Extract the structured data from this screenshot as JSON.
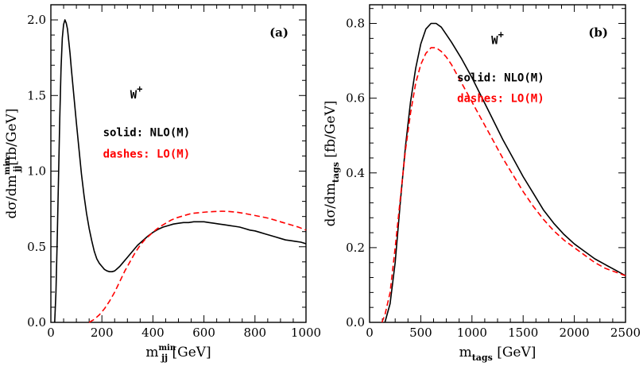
{
  "chart_data": [
    {
      "type": "line",
      "panel_tag": "(a)",
      "xlim": [
        0,
        1000
      ],
      "ylim": [
        0,
        2.1
      ],
      "xticks": [
        0,
        200,
        400,
        600,
        800,
        1000
      ],
      "yticks": [
        0.0,
        0.5,
        1.0,
        1.5,
        2.0
      ],
      "xtick_labels": [
        "0",
        "200",
        "400",
        "600",
        "800",
        "1000"
      ],
      "ytick_labels": [
        "0.0",
        "0.5",
        "1.0",
        "1.5",
        "2.0"
      ],
      "xlabel": {
        "main": "m",
        "sub": "jj",
        "sup": "min",
        "unit": "[GeV]"
      },
      "ylabel": {
        "main": "dσ/dm",
        "sub": "jj",
        "sup": "min",
        "unit": "[fb/GeV]"
      },
      "annotations": {
        "process": "W",
        "process_sup": "+",
        "solid": "solid: NLO(M)",
        "dashes": "dashes: LO(M)"
      },
      "series": [
        {
          "name": "NLO(M)",
          "style": "solid",
          "color": "#000000",
          "x": [
            15,
            20,
            25,
            30,
            35,
            40,
            45,
            50,
            55,
            60,
            65,
            70,
            75,
            80,
            90,
            100,
            110,
            120,
            130,
            140,
            150,
            160,
            170,
            180,
            190,
            200,
            210,
            220,
            230,
            240,
            250,
            260,
            270,
            280,
            300,
            320,
            340,
            360,
            380,
            400,
            420,
            440,
            460,
            480,
            500,
            520,
            540,
            560,
            580,
            600,
            620,
            640,
            660,
            680,
            700,
            720,
            740,
            760,
            780,
            800,
            820,
            840,
            860,
            880,
            900,
            920,
            940,
            960,
            980,
            1000
          ],
          "y": [
            0.0,
            0.2,
            0.55,
            0.95,
            1.35,
            1.68,
            1.88,
            1.97,
            2.0,
            1.98,
            1.94,
            1.86,
            1.78,
            1.68,
            1.5,
            1.32,
            1.15,
            0.98,
            0.84,
            0.72,
            0.62,
            0.54,
            0.47,
            0.42,
            0.39,
            0.37,
            0.35,
            0.34,
            0.335,
            0.335,
            0.34,
            0.355,
            0.37,
            0.39,
            0.43,
            0.47,
            0.51,
            0.54,
            0.57,
            0.595,
            0.615,
            0.63,
            0.64,
            0.65,
            0.655,
            0.66,
            0.66,
            0.665,
            0.665,
            0.665,
            0.66,
            0.655,
            0.65,
            0.645,
            0.64,
            0.635,
            0.63,
            0.62,
            0.61,
            0.605,
            0.595,
            0.585,
            0.575,
            0.565,
            0.555,
            0.545,
            0.54,
            0.535,
            0.53,
            0.52
          ]
        },
        {
          "name": "LO(M)",
          "style": "dashed",
          "color": "#ff0000",
          "x": [
            150,
            170,
            190,
            210,
            230,
            250,
            270,
            290,
            310,
            330,
            350,
            370,
            390,
            410,
            430,
            450,
            470,
            490,
            510,
            530,
            550,
            580,
            610,
            640,
            670,
            700,
            730,
            760,
            790,
            820,
            850,
            880,
            910,
            940,
            970,
            1000
          ],
          "y": [
            0.0,
            0.02,
            0.05,
            0.09,
            0.14,
            0.2,
            0.27,
            0.34,
            0.4,
            0.46,
            0.51,
            0.55,
            0.58,
            0.61,
            0.635,
            0.655,
            0.675,
            0.69,
            0.7,
            0.71,
            0.72,
            0.725,
            0.73,
            0.733,
            0.735,
            0.733,
            0.728,
            0.72,
            0.71,
            0.7,
            0.69,
            0.675,
            0.66,
            0.645,
            0.63,
            0.61
          ]
        }
      ]
    },
    {
      "type": "line",
      "panel_tag": "(b)",
      "xlim": [
        0,
        2500
      ],
      "ylim": [
        0,
        0.85
      ],
      "xticks": [
        0,
        500,
        1000,
        1500,
        2000,
        2500
      ],
      "yticks": [
        0.0,
        0.2,
        0.4,
        0.6,
        0.8
      ],
      "xtick_labels": [
        "0",
        "500",
        "1000",
        "1500",
        "2000",
        "2500"
      ],
      "ytick_labels": [
        "0.0",
        "0.2",
        "0.4",
        "0.6",
        "0.8"
      ],
      "xlabel": {
        "main": "m",
        "sub": "tags",
        "sup": "",
        "unit": "[GeV]"
      },
      "ylabel": {
        "main": "dσ/dm",
        "sub": "tags",
        "sup": "",
        "unit": "[fb/GeV]"
      },
      "annotations": {
        "process": "W",
        "process_sup": "+",
        "solid": "solid: NLO(M)",
        "dashes": "dashes: LO(M)"
      },
      "series": [
        {
          "name": "NLO(M)",
          "style": "solid",
          "color": "#000000",
          "x": [
            150,
            200,
            250,
            300,
            350,
            400,
            450,
            500,
            550,
            600,
            650,
            700,
            750,
            800,
            900,
            1000,
            1100,
            1200,
            1300,
            1400,
            1500,
            1600,
            1700,
            1800,
            1900,
            2000,
            2100,
            2200,
            2300,
            2400,
            2500
          ],
          "y": [
            0.0,
            0.05,
            0.16,
            0.32,
            0.47,
            0.59,
            0.68,
            0.745,
            0.785,
            0.8,
            0.8,
            0.79,
            0.77,
            0.75,
            0.705,
            0.655,
            0.6,
            0.545,
            0.49,
            0.44,
            0.39,
            0.345,
            0.3,
            0.265,
            0.235,
            0.21,
            0.19,
            0.17,
            0.155,
            0.14,
            0.125
          ]
        },
        {
          "name": "LO(M)",
          "style": "dashed",
          "color": "#ff0000",
          "x": [
            120,
            150,
            200,
            250,
            300,
            350,
            400,
            450,
            500,
            550,
            600,
            650,
            700,
            750,
            800,
            900,
            1000,
            1100,
            1200,
            1300,
            1400,
            1500,
            1600,
            1700,
            1800,
            1900,
            2000,
            2100,
            2200,
            2300,
            2400,
            2500
          ],
          "y": [
            0.0,
            0.02,
            0.08,
            0.2,
            0.33,
            0.46,
            0.56,
            0.64,
            0.69,
            0.72,
            0.735,
            0.735,
            0.725,
            0.71,
            0.69,
            0.64,
            0.59,
            0.54,
            0.49,
            0.44,
            0.395,
            0.35,
            0.31,
            0.275,
            0.245,
            0.22,
            0.2,
            0.18,
            0.16,
            0.145,
            0.135,
            0.125
          ]
        }
      ]
    }
  ]
}
